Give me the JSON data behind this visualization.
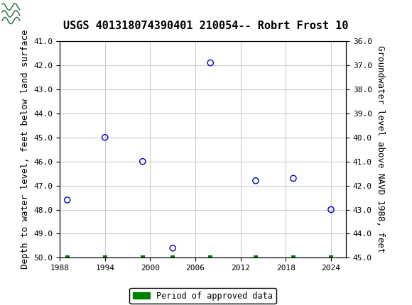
{
  "title": "USGS 401318074390401 210054-- Robrt Frost 10",
  "ylabel_left": "Depth to water level, feet below land surface",
  "ylabel_right": "Groundwater level above NAVD 1988, feet",
  "header_color": "#1a6b3c",
  "background_color": "#ffffff",
  "plot_bg_color": "#ffffff",
  "grid_color": "#cccccc",
  "point_color": "#0000cc",
  "bar_color": "#008000",
  "xlim": [
    1988,
    2026
  ],
  "ylim_left": [
    41.0,
    50.0
  ],
  "ylim_right": [
    36.0,
    45.0
  ],
  "yticks_left": [
    41.0,
    42.0,
    43.0,
    44.0,
    45.0,
    46.0,
    47.0,
    48.0,
    49.0,
    50.0
  ],
  "yticks_right": [
    36.0,
    37.0,
    38.0,
    39.0,
    40.0,
    41.0,
    42.0,
    43.0,
    44.0,
    45.0
  ],
  "xticks": [
    1988,
    1994,
    2000,
    2006,
    2012,
    2018,
    2024
  ],
  "data_points": [
    {
      "year": 1989,
      "depth": 47.6
    },
    {
      "year": 1994,
      "depth": 45.0
    },
    {
      "year": 1999,
      "depth": 46.0
    },
    {
      "year": 2003,
      "depth": 49.6
    },
    {
      "year": 2008,
      "depth": 41.9
    },
    {
      "year": 2014,
      "depth": 46.8
    },
    {
      "year": 2019,
      "depth": 46.7
    },
    {
      "year": 2024,
      "depth": 48.0
    }
  ],
  "approved_data_years": [
    1989,
    1994,
    1999,
    2003,
    2008,
    2014,
    2019,
    2024
  ],
  "legend_label": "Period of approved data",
  "title_fontsize": 11,
  "tick_fontsize": 8,
  "label_fontsize": 9
}
